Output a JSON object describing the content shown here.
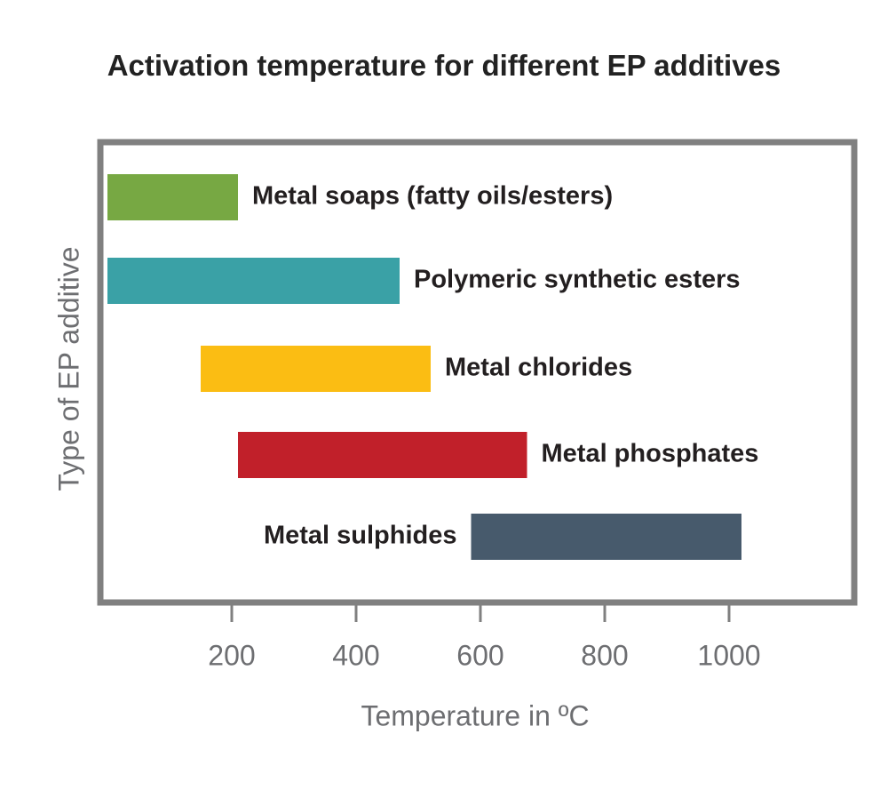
{
  "chart_data": {
    "type": "range-bar",
    "title": "Activation temperature for different EP additives",
    "x_label": "Temperature in ºC",
    "y_label": "Type of EP additive",
    "categories": [
      "Metal soaps (fatty oils/esters)",
      "Polymeric synthetic esters",
      "Metal chlorides",
      "Metal phosphates",
      "Metal sulphides"
    ],
    "low": [
      0,
      0,
      150,
      210,
      585
    ],
    "high": [
      210,
      470,
      520,
      675,
      1020
    ],
    "colors": [
      "#77a843",
      "#3aa1a6",
      "#fbbd13",
      "#c1202a",
      "#475a6c"
    ],
    "xlim": [
      0,
      1200
    ],
    "xticks": [
      200,
      400,
      600,
      800,
      1000
    ]
  }
}
